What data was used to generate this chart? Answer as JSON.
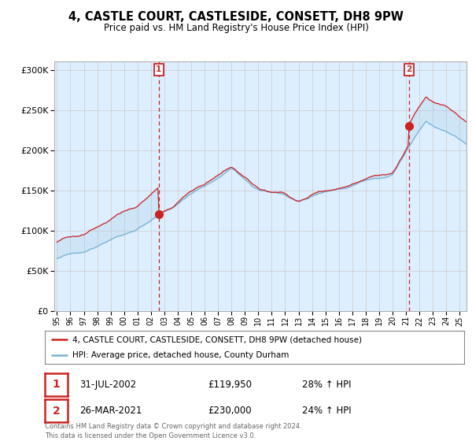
{
  "title_line1": "4, CASTLE COURT, CASTLESIDE, CONSETT, DH8 9PW",
  "title_line2": "Price paid vs. HM Land Registry's House Price Index (HPI)",
  "ylim": [
    0,
    310000
  ],
  "yticks": [
    0,
    50000,
    100000,
    150000,
    200000,
    250000,
    300000
  ],
  "ytick_labels": [
    "£0",
    "£50K",
    "£100K",
    "£150K",
    "£200K",
    "£250K",
    "£300K"
  ],
  "hpi_color": "#7ab3d4",
  "price_color": "#cc2222",
  "fill_color": "#ddeeff",
  "marker1_date": 2002.58,
  "marker1_price": 119950,
  "marker1_label": "31-JUL-2002",
  "marker1_value_str": "£119,950",
  "marker1_pct": "28% ↑ HPI",
  "marker2_date": 2021.24,
  "marker2_price": 230000,
  "marker2_label": "26-MAR-2021",
  "marker2_value_str": "£230,000",
  "marker2_pct": "24% ↑ HPI",
  "legend_line1": "4, CASTLE COURT, CASTLESIDE, CONSETT, DH8 9PW (detached house)",
  "legend_line2": "HPI: Average price, detached house, County Durham",
  "footnote": "Contains HM Land Registry data © Crown copyright and database right 2024.\nThis data is licensed under the Open Government Licence v3.0.",
  "xmin": 1994.8,
  "xmax": 2025.5,
  "background_color": "#ffffff",
  "grid_color": "#cccccc"
}
